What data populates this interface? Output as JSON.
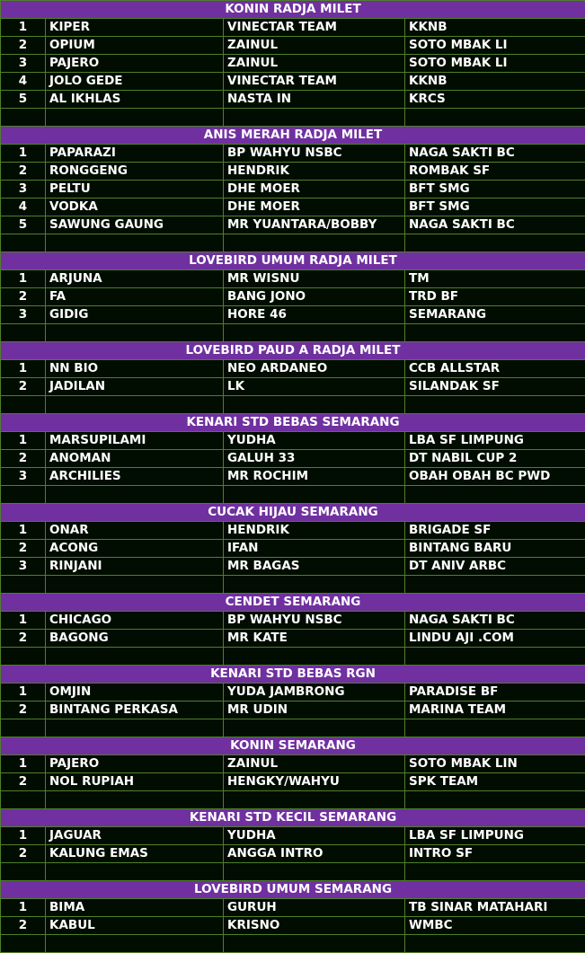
{
  "sections": [
    {
      "title": "KONIN RADJA MILET",
      "rows": [
        [
          "1",
          "KIPER",
          "VINECTAR TEAM",
          "KKNB"
        ],
        [
          "2",
          "OPIUM",
          "ZAINUL",
          "SOTO MBAK LI"
        ],
        [
          "3",
          "PAJERO",
          "ZAINUL",
          "SOTO MBAK LI"
        ],
        [
          "4",
          "JOLO GEDE",
          "VINECTAR TEAM",
          "KKNB"
        ],
        [
          "5",
          "AL IKHLAS",
          "NASTA IN",
          "KRCS"
        ]
      ],
      "blank": true
    },
    {
      "title": "ANIS MERAH RADJA MILET",
      "rows": [
        [
          "1",
          "PAPARAZI",
          "BP WAHYU NSBC",
          "NAGA SAKTI BC"
        ],
        [
          "2",
          "RONGGENG",
          "HENDRIK",
          "ROMBAK SF"
        ],
        [
          "3",
          "PELTU",
          "DHE MOER",
          "BFT SMG"
        ],
        [
          "4",
          "VODKA",
          "DHE MOER",
          "BFT SMG"
        ],
        [
          "5",
          "SAWUNG GAUNG",
          "MR YUANTARA/BOBBY",
          "NAGA SAKTI BC"
        ]
      ],
      "blank": true
    },
    {
      "title": "LOVEBIRD UMUM RADJA MILET",
      "rows": [
        [
          "1",
          "ARJUNA",
          "MR WISNU",
          "TM"
        ],
        [
          "2",
          "FA",
          "BANG JONO",
          "TRD BF"
        ],
        [
          "3",
          "GIDIG",
          "HORE 46",
          "SEMARANG"
        ]
      ],
      "blank": true
    },
    {
      "title": "LOVEBIRD PAUD A RADJA MILET",
      "rows": [
        [
          "1",
          "NN BIO",
          "NEO ARDANEO",
          "CCB ALLSTAR"
        ],
        [
          "2",
          "JADILAN",
          "LK",
          "SILANDAK SF"
        ]
      ],
      "blank": true
    },
    {
      "title": "KENARI STD BEBAS SEMARANG",
      "rows": [
        [
          "1",
          "MARSUPILAMI",
          "YUDHA",
          "LBA SF LIMPUNG"
        ],
        [
          "2",
          "ANOMAN",
          "GALUH 33",
          "DT NABIL CUP 2"
        ],
        [
          "3",
          "ARCHILIES",
          "MR ROCHIM",
          "OBAH OBAH BC PWD"
        ]
      ],
      "blank": true
    },
    {
      "title": "CUCAK HIJAU SEMARANG",
      "rows": [
        [
          "1",
          "ONAR",
          "HENDRIK",
          "BRIGADE SF"
        ],
        [
          "2",
          "ACONG",
          "IFAN",
          "BINTANG BARU"
        ],
        [
          "3",
          "RINJANI",
          "MR BAGAS",
          "DT ANIV ARBC"
        ]
      ],
      "blank": true
    },
    {
      "title": "CENDET SEMARANG",
      "rows": [
        [
          "1",
          "CHICAGO",
          "BP WAHYU NSBC",
          "NAGA SAKTI BC"
        ],
        [
          "2",
          "BAGONG",
          "MR KATE",
          "LINDU AJI .COM"
        ]
      ],
      "blank": true
    },
    {
      "title": "KENARI STD BEBAS RGN",
      "rows": [
        [
          "1",
          "OMJIN",
          "YUDA JAMBRONG",
          "PARADISE BF"
        ],
        [
          "2",
          "BINTANG PERKASA",
          "MR UDIN",
          "MARINA TEAM"
        ]
      ],
      "blank": true
    },
    {
      "title": "KONIN SEMARANG",
      "rows": [
        [
          "1",
          "PAJERO",
          "ZAINUL",
          "SOTO MBAK LIN"
        ],
        [
          "2",
          "NOL RUPIAH",
          "HENGKY/WAHYU",
          "SPK TEAM"
        ]
      ],
      "blank": true
    },
    {
      "title": "KENARI STD KECIL SEMARANG",
      "rows": [
        [
          "1",
          "JAGUAR",
          "YUDHA",
          "LBA SF LIMPUNG"
        ],
        [
          "2",
          "KALUNG EMAS",
          "ANGGA INTRO",
          "INTRO SF"
        ]
      ],
      "blank": true
    },
    {
      "title": "LOVEBIRD UMUM SEMARANG",
      "rows": [
        [
          "1",
          "BIMA",
          "GURUH",
          "TB SINAR MATAHARI"
        ],
        [
          "2",
          "KABUL",
          "KRISNO",
          "WMBC"
        ]
      ],
      "blank": true
    }
  ],
  "colors": {
    "header": "#7030a0",
    "background": "#010d01",
    "grid": "#4f7f2c"
  }
}
